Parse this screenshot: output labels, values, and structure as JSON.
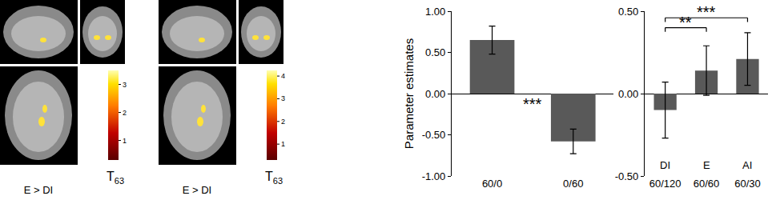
{
  "brain_panels": [
    {
      "caption": "E > DI",
      "colorbar": {
        "label": "T",
        "label_sub": "63",
        "range": [
          0.3,
          3.5
        ],
        "ticks": [
          1,
          2,
          3
        ]
      }
    },
    {
      "caption": "E > DI",
      "colorbar": {
        "label": "T",
        "label_sub": "63",
        "range": [
          0.3,
          4.25
        ],
        "ticks": [
          1,
          2,
          3,
          4
        ]
      }
    }
  ],
  "chart_data": [
    {
      "type": "bar",
      "y_label": "Parameter estimates",
      "categories": [
        "60/0",
        "0/60"
      ],
      "values": [
        0.65,
        -0.58
      ],
      "errors": [
        0.17,
        0.15
      ],
      "color": "#595959",
      "ylim": [
        -1,
        1
      ],
      "yticks": [
        {
          "value": -1,
          "label": "-1.00"
        },
        {
          "value": -0.5,
          "label": "-0.50"
        },
        {
          "value": 0,
          "label": "0.00"
        },
        {
          "value": 0.5,
          "label": "0.50"
        },
        {
          "value": 1,
          "label": "1.00"
        }
      ],
      "annotations": [
        {
          "text": "***",
          "from": "60/0",
          "to": "0/60"
        }
      ]
    },
    {
      "type": "bar",
      "categories": [
        "60/120",
        "60/60",
        "60/30"
      ],
      "group_labels": [
        "DI",
        "E",
        "AI"
      ],
      "values": [
        -0.1,
        0.14,
        0.21
      ],
      "errors": [
        0.17,
        0.15,
        0.16
      ],
      "color": "#595959",
      "ylim": [
        -0.5,
        0.5
      ],
      "yticks": [
        {
          "value": -0.5,
          "label": "-0.50"
        },
        {
          "value": 0,
          "label": "0.00"
        },
        {
          "value": 0.5,
          "label": "0.50"
        }
      ],
      "brackets": [
        {
          "text": "**",
          "from": "60/120",
          "to": "60/60"
        },
        {
          "text": "***",
          "from": "60/120",
          "to": "60/30"
        }
      ]
    }
  ]
}
